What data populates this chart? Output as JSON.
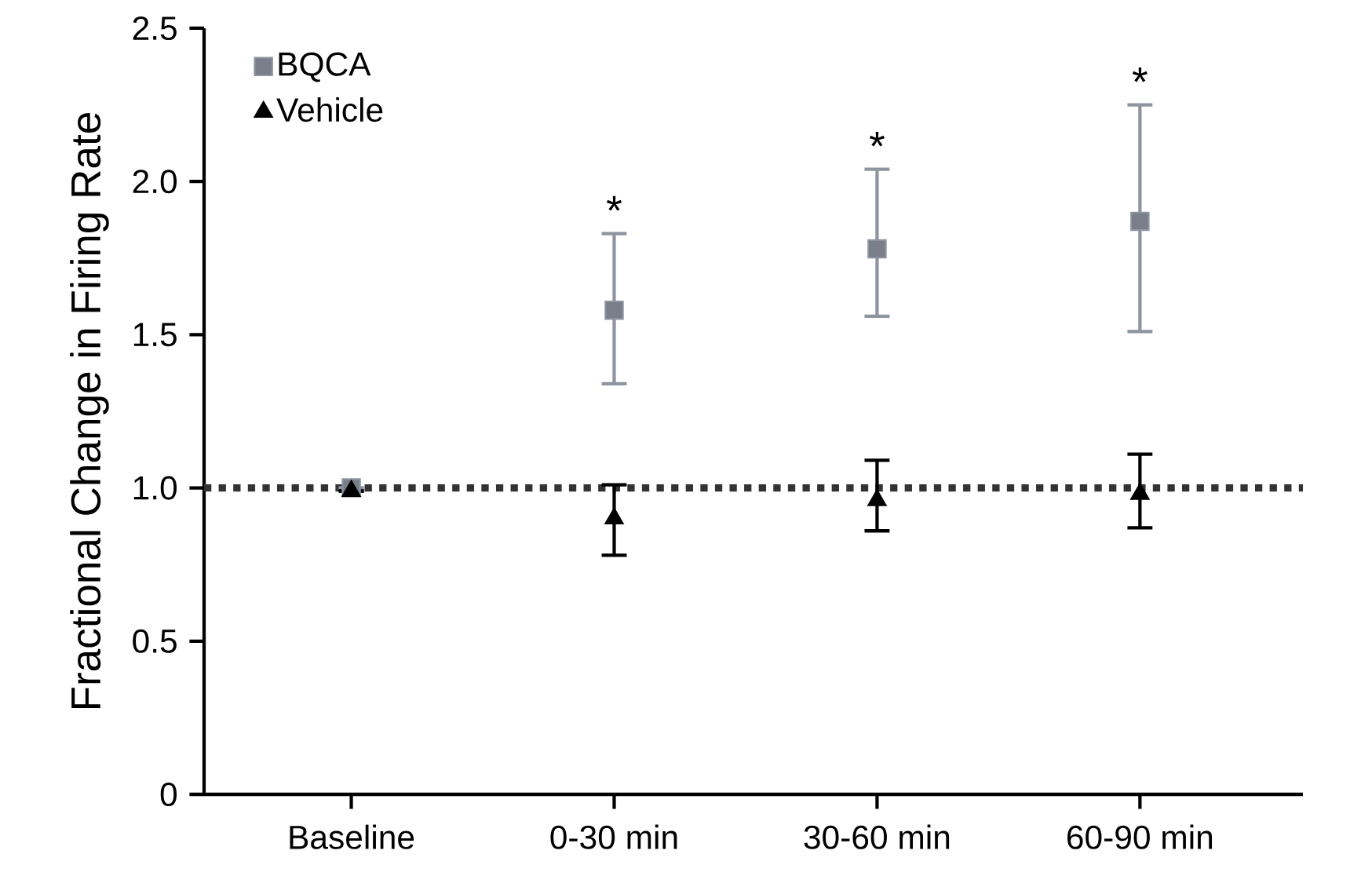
{
  "chart_data": {
    "type": "scatter",
    "ylabel": "Fractional Change in Firing Rate",
    "categories": [
      "Baseline",
      "0-30 min",
      "30-60 min",
      "60-90 min"
    ],
    "ylim": [
      0,
      2.5
    ],
    "yticks": [
      0,
      0.5,
      {
        "value": 1,
        "label": "1.0"
      },
      1.5,
      {
        "value": 2,
        "label": "2.0"
      },
      2.5
    ],
    "series": [
      {
        "name": "BQCA",
        "color": "#8e94a0",
        "marker": "square",
        "values": [
          1.0,
          1.58,
          1.78,
          1.87
        ],
        "errors": [
          null,
          [
            1.34,
            1.83
          ],
          [
            1.56,
            2.04
          ],
          [
            1.51,
            2.25
          ]
        ]
      },
      {
        "name": "Vehicle",
        "color": "#000000",
        "marker": "triangle",
        "values": [
          0.99,
          0.9,
          0.96,
          0.98
        ],
        "errors": [
          null,
          [
            0.78,
            1.01
          ],
          [
            0.86,
            1.09
          ],
          [
            0.87,
            1.11
          ]
        ]
      }
    ],
    "ref_lines": [
      {
        "axis": "y",
        "value": 1.0,
        "color": "#333333",
        "line_style": "dotted"
      }
    ],
    "annotations": [
      {
        "text": "*",
        "x": "0-30 min",
        "y": 1.83
      },
      {
        "text": "*",
        "x": "30-60 min",
        "y": 2.04
      },
      {
        "text": "*",
        "x": "60-90 min",
        "y": 2.25
      }
    ],
    "legend": "top left",
    "grid": false
  }
}
